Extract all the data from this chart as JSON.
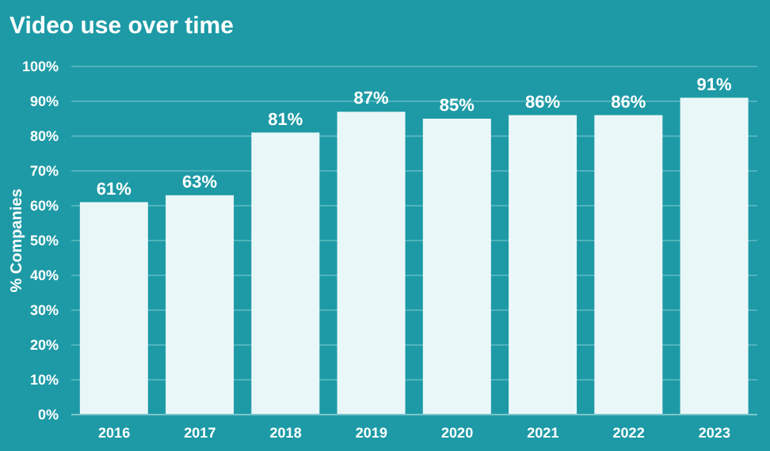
{
  "chart_data": {
    "type": "bar",
    "title": "Video use over time",
    "ylabel": "% Companies",
    "categories": [
      "2016",
      "2017",
      "2018",
      "2019",
      "2020",
      "2021",
      "2022",
      "2023"
    ],
    "values": [
      61,
      63,
      81,
      87,
      85,
      86,
      86,
      91
    ],
    "color": "#eaf7f8",
    "value_labels": [
      "61%",
      "63%",
      "81%",
      "87%",
      "85%",
      "86%",
      "86%",
      "91%"
    ],
    "ylim": [
      0,
      100
    ],
    "yticks": [
      {
        "value": 0,
        "label": "0%"
      },
      {
        "value": 10,
        "label": "10%"
      },
      {
        "value": 20,
        "label": "20%"
      },
      {
        "value": 30,
        "label": "30%"
      },
      {
        "value": 40,
        "label": "40%"
      },
      {
        "value": 50,
        "label": "50%"
      },
      {
        "value": 60,
        "label": "60%"
      },
      {
        "value": 70,
        "label": "70%"
      },
      {
        "value": 80,
        "label": "80%"
      },
      {
        "value": 90,
        "label": "90%"
      },
      {
        "value": 100,
        "label": "100%"
      }
    ],
    "grid": "y",
    "legend": false
  }
}
